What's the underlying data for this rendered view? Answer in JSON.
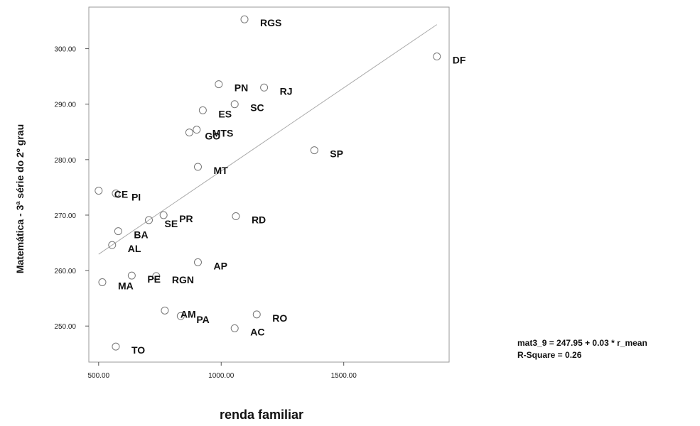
{
  "chart_data": {
    "type": "scatter",
    "xlabel": "renda familiar",
    "ylabel": "Matemática - 3ª série do 2º grau",
    "xlim": [
      460,
      1930
    ],
    "ylim": [
      243.5,
      307.5
    ],
    "x_ticks": [
      500,
      1000,
      1500
    ],
    "x_tick_labels": [
      "500.00",
      "1000.00",
      "1500.00"
    ],
    "y_ticks": [
      250,
      260,
      270,
      280,
      290,
      300
    ],
    "y_tick_labels": [
      "250.00",
      "260.00",
      "270.00",
      "280.00",
      "290.00",
      "300.00"
    ],
    "grid": false,
    "marker": "open-circle",
    "points": [
      {
        "label": "RGS",
        "x": 1095,
        "y": 305.3
      },
      {
        "label": "DF",
        "x": 1880,
        "y": 298.6
      },
      {
        "label": "PN",
        "x": 990,
        "y": 293.6
      },
      {
        "label": "RJ",
        "x": 1175,
        "y": 293.0
      },
      {
        "label": "SC",
        "x": 1055,
        "y": 290.0
      },
      {
        "label": "ES",
        "x": 925,
        "y": 288.9
      },
      {
        "label": "MTS",
        "x": 900,
        "y": 285.4
      },
      {
        "label": "GO",
        "x": 870,
        "y": 284.9
      },
      {
        "label": "SP",
        "x": 1380,
        "y": 281.7
      },
      {
        "label": "MT",
        "x": 905,
        "y": 278.7
      },
      {
        "label": "PI",
        "x": 570,
        "y": 273.9
      },
      {
        "label": "CE",
        "x": 500,
        "y": 274.4
      },
      {
        "label": "PR",
        "x": 765,
        "y": 270.0
      },
      {
        "label": "SE",
        "x": 705,
        "y": 269.1
      },
      {
        "label": "RD",
        "x": 1060,
        "y": 269.8
      },
      {
        "label": "BA",
        "x": 580,
        "y": 267.1
      },
      {
        "label": "AL",
        "x": 555,
        "y": 264.6
      },
      {
        "label": "AP",
        "x": 905,
        "y": 261.5
      },
      {
        "label": "PE",
        "x": 635,
        "y": 259.1
      },
      {
        "label": "RGN",
        "x": 735,
        "y": 259.0
      },
      {
        "label": "MA",
        "x": 515,
        "y": 257.9
      },
      {
        "label": "AM",
        "x": 770,
        "y": 252.8
      },
      {
        "label": "PA",
        "x": 835,
        "y": 251.8
      },
      {
        "label": "RO",
        "x": 1145,
        "y": 252.1
      },
      {
        "label": "AC",
        "x": 1055,
        "y": 249.6
      },
      {
        "label": "TO",
        "x": 570,
        "y": 246.3
      }
    ],
    "fit_line": {
      "intercept": 247.95,
      "slope": 0.03,
      "x_range": [
        500,
        1880
      ]
    },
    "annotations": [
      "mat3_9 = 247.95 + 0.03 * r_mean",
      "R-Square = 0.26"
    ]
  }
}
